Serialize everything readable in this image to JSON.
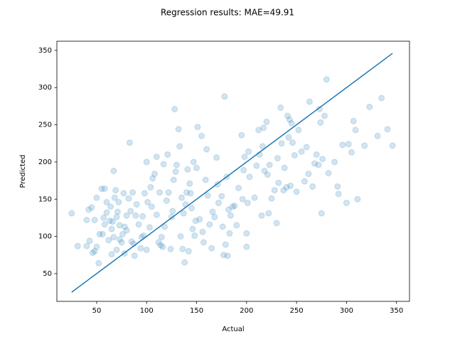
{
  "chart_data": {
    "type": "scatter",
    "title": "Regression results: MAE=49.91",
    "x_label": "Actual",
    "y_label": "Predicted",
    "xlim": [
      10.2,
      363
    ],
    "ylim": [
      12.7,
      362.3
    ],
    "xticks": [
      50,
      100,
      150,
      200,
      250,
      300,
      350
    ],
    "yticks": [
      50,
      100,
      150,
      200,
      250,
      300,
      350
    ],
    "grid": false,
    "series": [
      {
        "type": "scatter",
        "color": "#1f77b4",
        "alpha": 0.2,
        "x": [
          25,
          31,
          40,
          40,
          42,
          43,
          45,
          46,
          48,
          48,
          50,
          50,
          52,
          53,
          55,
          56,
          57,
          58,
          58,
          60,
          60,
          62,
          63,
          64,
          65,
          65,
          66,
          67,
          67,
          68,
          69,
          70,
          70,
          71,
          72,
          73,
          73,
          75,
          76,
          77,
          78,
          78,
          80,
          80,
          82,
          83,
          84,
          85,
          86,
          87,
          88,
          89,
          90,
          92,
          94,
          95,
          96,
          97,
          98,
          100,
          100,
          101,
          103,
          104,
          105,
          106,
          108,
          110,
          110,
          112,
          113,
          114,
          115,
          116,
          117,
          118,
          120,
          121,
          122,
          124,
          125,
          126,
          127,
          128,
          129,
          130,
          132,
          133,
          134,
          135,
          136,
          137,
          138,
          139,
          140,
          141,
          142,
          143,
          144,
          145,
          146,
          147,
          148,
          149,
          150,
          151,
          153,
          155,
          156,
          157,
          159,
          160,
          161,
          163,
          165,
          166,
          168,
          170,
          171,
          172,
          175,
          176,
          177,
          178,
          179,
          180,
          181,
          182,
          183,
          184,
          186,
          188,
          190,
          192,
          195,
          196,
          197,
          198,
          200,
          200,
          201,
          202,
          203,
          208,
          210,
          212,
          213,
          215,
          216,
          217,
          218,
          220,
          221,
          222,
          223,
          225,
          228,
          230,
          231,
          232,
          234,
          235,
          237,
          238,
          240,
          241,
          242,
          243,
          244,
          245,
          246,
          248,
          250,
          252,
          255,
          258,
          260,
          262,
          263,
          266,
          268,
          270,
          272,
          273,
          274,
          275,
          276,
          278,
          280,
          282,
          288,
          291,
          292,
          296,
          300,
          302,
          305,
          307,
          309,
          311,
          318,
          323,
          331,
          335,
          341,
          346
        ],
        "y": [
          131,
          87,
          122,
          87,
          136,
          94,
          139,
          78,
          80,
          122,
          152,
          86,
          64,
          103,
          164,
          103,
          125,
          164,
          116,
          146,
          132,
          95,
          121,
          140,
          76,
          110,
          120,
          188,
          99,
          152,
          162,
          82,
          126,
          133,
          146,
          96,
          115,
          92,
          103,
          158,
          77,
          113,
          108,
          128,
          151,
          226,
          134,
          93,
          159,
          90,
          74,
          128,
          143,
          116,
          84,
          99,
          127,
          101,
          158,
          200,
          82,
          146,
          112,
          166,
          140,
          178,
          184,
          129,
          207,
          92,
          159,
          88,
          99,
          86,
          197,
          113,
          148,
          210,
          159,
          83,
          126,
          134,
          176,
          271,
          187,
          196,
          244,
          221,
          100,
          152,
          83,
          131,
          65,
          143,
          159,
          190,
          80,
          171,
          158,
          138,
          110,
          200,
          101,
          121,
          192,
          247,
          123,
          235,
          106,
          92,
          176,
          217,
          155,
          116,
          84,
          133,
          126,
          206,
          170,
          145,
          154,
          113,
          75,
          288,
          89,
          180,
          74,
          136,
          104,
          128,
          140,
          141,
          115,
          165,
          236,
          150,
          189,
          207,
          104,
          86,
          145,
          214,
          180,
          152,
          195,
          243,
          210,
          128,
          221,
          246,
          188,
          254,
          183,
          131,
          196,
          151,
          162,
          118,
          205,
          172,
          273,
          225,
          162,
          192,
          166,
          262,
          233,
          257,
          168,
          252,
          226,
          209,
          160,
          243,
          214,
          174,
          220,
          184,
          281,
          167,
          198,
          210,
          196,
          271,
          253,
          131,
          204,
          262,
          311,
          185,
          200,
          167,
          157,
          223,
          145,
          224,
          213,
          255,
          243,
          150,
          222,
          274,
          235,
          286,
          244,
          222
        ]
      },
      {
        "type": "line",
        "color": "#1f77b4",
        "x": [
          25,
          346
        ],
        "y": [
          25,
          346
        ]
      }
    ]
  }
}
